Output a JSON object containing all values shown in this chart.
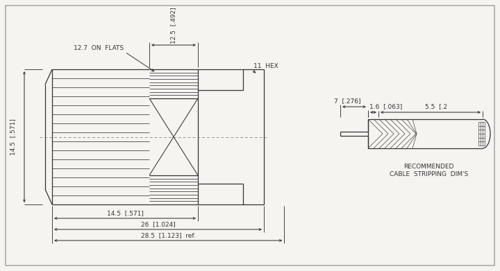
{
  "bg": "#f5f4f0",
  "lc": "#333333",
  "fs": 6.5,
  "lw": 0.9,
  "dims": {
    "h145": "14.5  [.571]",
    "w145": "14.5  [.571]",
    "w26": "26  [1.024]",
    "w285": "28.5  [1.123]  ref.",
    "h125": "12.5  [.492]",
    "flats": "12.7  ON  FLATS",
    "hex11": "11  HEX",
    "c7": "7  [.276]",
    "c16": "1.6  [.063]",
    "c55": "5.5  [.2",
    "cable_lbl": "RECOMMENDED\nCABLE  STRIPPING  DIM'S"
  }
}
